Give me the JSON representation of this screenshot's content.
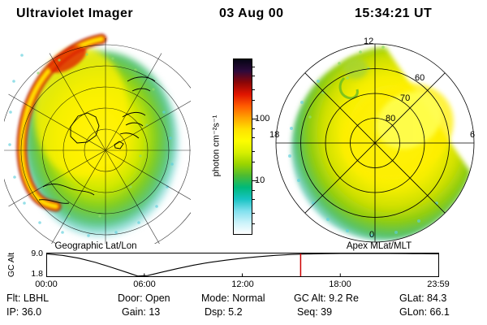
{
  "header": {
    "title": "Ultraviolet Imager",
    "date": "03 Aug 00",
    "time": "15:34:21 UT"
  },
  "captions": {
    "left": "Geographic Lat/Lon",
    "right": "Apex MLat/MLT"
  },
  "colorbar": {
    "label": "photon cm⁻²s⁻¹",
    "tick_labels": [
      "100",
      "10"
    ],
    "scale": "log",
    "colors_top_to_bottom": [
      "#050514",
      "#2d0a3c",
      "#8c0606",
      "#e01400",
      "#ff5a00",
      "#ffa200",
      "#ffe000",
      "#fdfd00",
      "#d8ef00",
      "#9ad400",
      "#4cbb33",
      "#00b97a",
      "#17c3c3",
      "#7fe0ee",
      "#c9f2fa",
      "#ffffff"
    ]
  },
  "polar_labels": {
    "mlt_12": "12",
    "mlt_18": "18",
    "mlt_6": "6",
    "mlt_0": "0",
    "lat_60": "60",
    "lat_70": "70",
    "lat_80": "80"
  },
  "orbit_plot": {
    "ylabel": "GC Alt",
    "ytick_top": "9.0",
    "ytick_bottom": "1.8",
    "xticks": [
      "00:00",
      "06:00",
      "12:00",
      "18:00",
      "23:59"
    ],
    "marker_color": "#cc0000"
  },
  "status": {
    "flt": "Flt: LBHL",
    "door": "Door: Open",
    "mode": "Mode: Normal",
    "gc_alt": "GC Alt: 9.2 Re",
    "glat": "GLat: 84.3",
    "ip": "IP: 36.0",
    "gain": "Gain: 13",
    "dsp": "Dsp: 5.2",
    "seq": "Seq: 39",
    "glon": "GLon: 66.1"
  },
  "chart_data": [
    {
      "type": "line",
      "title": "Spacecraft geocentric altitude vs universal time",
      "ylabel": "GC Alt",
      "xlabel": "UT",
      "ylim": [
        1.8,
        9.0
      ],
      "y_ticks": [
        9.0,
        1.8
      ],
      "x_ticks": [
        "00:00",
        "06:00",
        "12:00",
        "18:00",
        "23:59"
      ],
      "x_hours": [
        0,
        1,
        2,
        3,
        4,
        5,
        5.6,
        6.2,
        7,
        8,
        9,
        10,
        11,
        12,
        13,
        14,
        15,
        16,
        17,
        18,
        19,
        20,
        21,
        22,
        23,
        24
      ],
      "values": [
        8.9,
        8.4,
        7.5,
        6.2,
        4.6,
        2.9,
        1.85,
        2.0,
        3.0,
        4.2,
        5.3,
        6.2,
        6.9,
        7.5,
        8.0,
        8.4,
        8.7,
        8.85,
        8.95,
        9.0,
        9.0,
        9.0,
        9.0,
        8.98,
        8.95,
        8.9
      ],
      "marker_hour": 15.5725,
      "marker_label": "15:34:21 UT"
    },
    {
      "type": "heatmap",
      "title": "Geographic Lat/Lon",
      "description": "UV auroral image projected on northern-hemisphere geographic map; bright red/orange/yellow auroral arc crescent along left limb, diffuse yellow-green emission over polar cap with cyan speckle fringe",
      "units": "photon cm⁻²s⁻¹",
      "scale": "log",
      "scale_ticks": [
        10,
        100
      ]
    },
    {
      "type": "heatmap",
      "title": "Apex MLat/MLT",
      "description": "Same UV image mapped to apex magnetic latitude / magnetic local time dial; yellow-green emission fills most of dial with straight field-of-view boundary toward dawn sector and small cusp patch near noon",
      "mlt_spoke_labels": [
        "12",
        "18",
        "6",
        "0"
      ],
      "mlat_rings": [
        80,
        70,
        60
      ],
      "units": "photon cm⁻²s⁻¹",
      "scale": "log",
      "scale_ticks": [
        10,
        100
      ]
    }
  ]
}
